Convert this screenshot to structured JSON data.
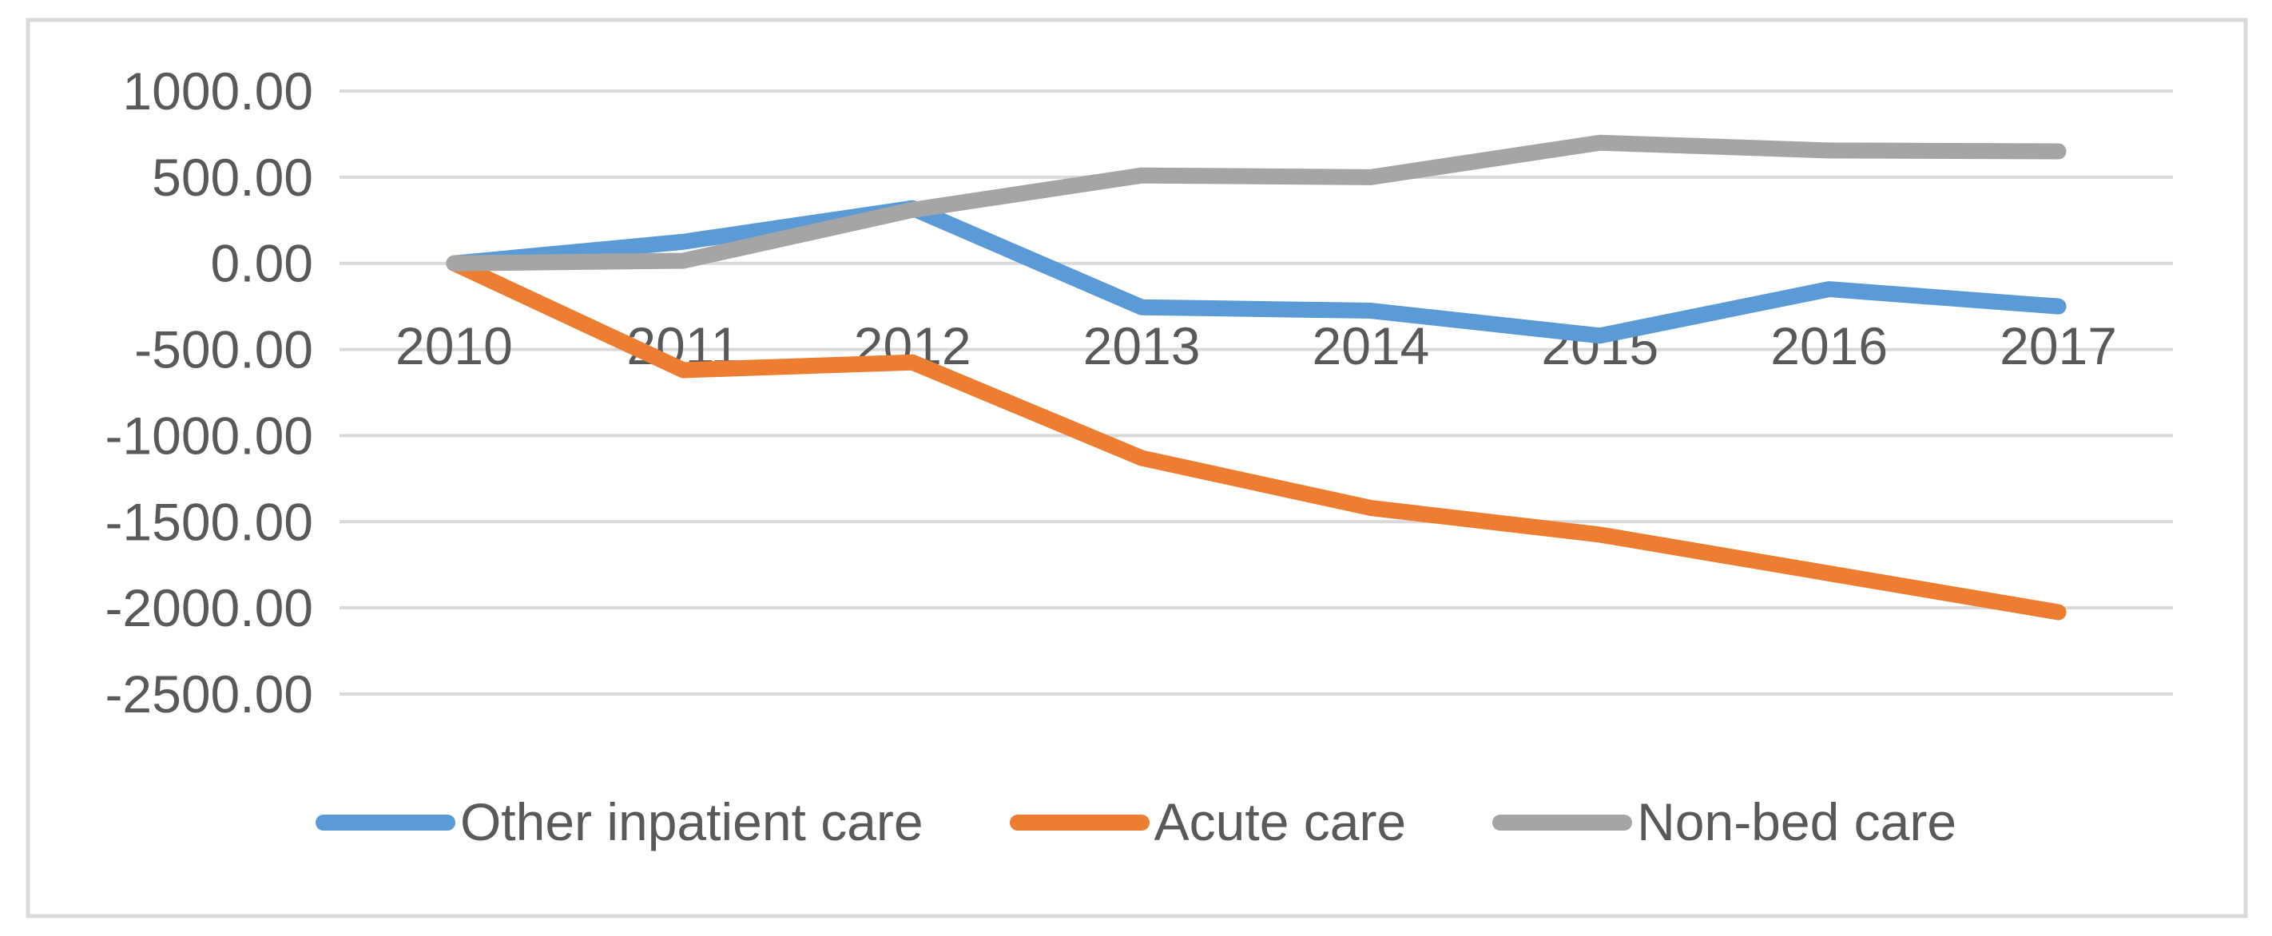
{
  "chart_data": {
    "type": "line",
    "title": "",
    "categories": [
      "2010",
      "2011",
      "2012",
      "2013",
      "2014",
      "2015",
      "2016",
      "2017"
    ],
    "series": [
      {
        "name": "Other inpatient care",
        "color": "#5B9BD5",
        "values": [
          0,
          125,
          320,
          -255,
          -275,
          -420,
          -150,
          -250
        ]
      },
      {
        "name": "Acute care",
        "color": "#ED7D31",
        "values": [
          0,
          -620,
          -575,
          -1130,
          -1420,
          -1575,
          -1800,
          -2025
        ]
      },
      {
        "name": "Non-bed care",
        "color": "#A5A5A5",
        "values": [
          0,
          15,
          310,
          510,
          500,
          700,
          655,
          650
        ]
      }
    ],
    "y_axis": {
      "min": -2500,
      "max": 1000,
      "step": 500,
      "tick_labels": [
        "1000.00",
        "500.00",
        "0.00",
        "-500.00",
        "-1000.00",
        "-1500.00",
        "-2000.00",
        "-2500.00"
      ]
    },
    "grid": true,
    "legend_position": "bottom"
  },
  "colors": {
    "axis_text": "#595959",
    "gridline": "#D9D9D9",
    "frame_border": "#D9D9D9",
    "background": "#FFFFFF"
  }
}
